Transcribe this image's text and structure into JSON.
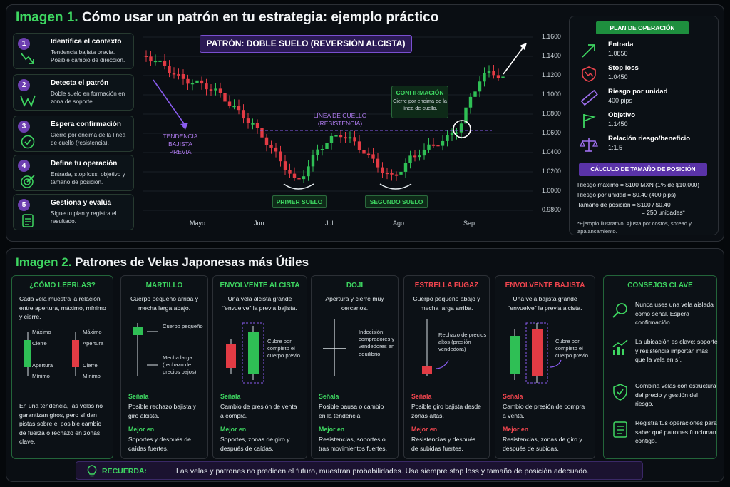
{
  "image1": {
    "num": "Imagen 1.",
    "title": "Cómo usar un patrón en tu estrategia: ejemplo práctico",
    "steps": [
      {
        "n": "1",
        "title": "Identifica el contexto",
        "desc": "Tendencia bajista previa. Posible cambio de dirección.",
        "icon": "trend-down-icon"
      },
      {
        "n": "2",
        "title": "Detecta el patrón",
        "desc": "Doble suelo en formación en zona de soporte.",
        "icon": "w-pattern-icon"
      },
      {
        "n": "3",
        "title": "Espera confirmación",
        "desc": "Cierre por encima de la línea de cuello (resistencia).",
        "icon": "check-circle-icon"
      },
      {
        "n": "4",
        "title": "Define tu operación",
        "desc": "Entrada, stop loss, objetivo y tamaño de posición.",
        "icon": "target-icon"
      },
      {
        "n": "5",
        "title": "Gestiona y evalúa",
        "desc": "Sigue tu plan y registra el resultado.",
        "icon": "clipboard-icon"
      }
    ],
    "chart": {
      "pattern_label": "PATRÓN: DOBLE SUELO (REVERSIÓN ALCISTA)",
      "trend_label": "TENDENCIA BAJISTA PREVIA",
      "neckline_label": "LÍNEA DE CUELLO (RESISTENCIA)",
      "first_bottom": "PRIMER SUELO",
      "second_bottom": "SEGUNDO SUELO",
      "confirm_title": "CONFIRMACIÓN",
      "confirm_desc": "Cierre por encima de la línea de cuello.",
      "y_ticks": [
        "1.1600",
        "1.1400",
        "1.1200",
        "1.1000",
        "1.0800",
        "1.0600",
        "1.0400",
        "1.0200",
        "1.0000",
        "0.9800"
      ],
      "x_ticks": [
        "Mayo",
        "Jun",
        "Jul",
        "Ago",
        "Sep"
      ]
    },
    "plan": {
      "title": "PLAN DE OPERACIÓN",
      "items": [
        {
          "label": "Entrada",
          "value": "1.0850",
          "icon": "arrow-up-right-icon"
        },
        {
          "label": "Stop loss",
          "value": "1.0450",
          "icon": "shield-down-icon"
        },
        {
          "label": "Riesgo por unidad",
          "value": "400 pips",
          "icon": "ruler-icon"
        },
        {
          "label": "Objetivo",
          "value": "1.1450",
          "icon": "flag-icon"
        },
        {
          "label": "Relación riesgo/beneficio",
          "value": "1:1.5",
          "icon": "scale-icon"
        }
      ],
      "calc_title": "CÁLCULO DE TAMAÑO DE POSICIÓN",
      "calc_lines": [
        "Riesgo máximo = $100 MXN (1% de $10,000)",
        "Riesgo por unidad = $0.40 (400 pips)",
        "Tamaño de posición = $100 / $0.40",
        "= 250 unidades*"
      ],
      "note": "*Ejemplo ilustrativo. Ajusta por costos, spread y apalancamiento."
    }
  },
  "image2": {
    "num": "Imagen 2.",
    "title": "Patrones de Velas Japonesas más Útiles",
    "how": {
      "title": "¿CÓMO LEERLAS?",
      "desc": "Cada vela muestra la relación entre apertura, máximo, mínimo y cierre.",
      "bull_labels": [
        "Máximo",
        "Cierre",
        "Apertura",
        "Mínimo"
      ],
      "bear_labels": [
        "Máximo",
        "Apertura",
        "Cierre",
        "Mínimo"
      ],
      "foot": "En una tendencia, las velas no garantizan giros, pero sí dan pistas sobre el posible cambio de fuerza o rechazo en zonas clave."
    },
    "patterns": [
      {
        "title": "MARTILLO",
        "desc": "Cuerpo pequeño arriba y mecha larga abajo.",
        "ann1": "Cuerpo pequeño",
        "ann2": "Mecha larga (rechazo de precios bajos)",
        "signal_h": "Señala",
        "signal": "Posible rechazo bajista y giro alcista.",
        "best_h": "Mejor en",
        "best": "Soportes y después de caídas fuertes."
      },
      {
        "title": "ENVOLVENTE ALCISTA",
        "desc": "Una vela alcista grande “envuelve” la previa bajista.",
        "ann1": "Cubre por completo el cuerpo previo",
        "signal_h": "Señala",
        "signal": "Cambio de presión de venta a compra.",
        "best_h": "Mejor en",
        "best": "Soportes, zonas de giro y después de caídas."
      },
      {
        "title": "DOJI",
        "desc": "Apertura y cierre muy cercanos.",
        "ann1": "Indecisión: compradores y vendedores en equilibrio",
        "signal_h": "Señala",
        "signal": "Posible pausa o cambio en la tendencia.",
        "best_h": "Mejor en",
        "best": "Resistencias, soportes o tras movimientos fuertes."
      },
      {
        "title": "ESTRELLA FUGAZ",
        "desc": "Cuerpo pequeño abajo y mecha larga arriba.",
        "ann1": "Rechazo de precios altos (presión vendedora)",
        "signal_h": "Señala",
        "signal": "Posible giro bajista desde zonas altas.",
        "best_h": "Mejor en",
        "best": "Resistencias y después de subidas fuertes."
      },
      {
        "title": "ENVOLVENTE BAJISTA",
        "desc": "Una vela bajista grande “envuelve” la previa alcista.",
        "ann1": "Cubre por completo el cuerpo previo",
        "signal_h": "Señala",
        "signal": "Cambio de presión de compra a venta.",
        "best_h": "Mejor en",
        "best": "Resistencias, zonas de giro y después de subidas."
      }
    ],
    "tips": {
      "title": "CONSEJOS CLAVE",
      "items": [
        {
          "text": "Nunca uses una vela aislada como señal. Espera confirmación.",
          "icon": "magnifier-icon"
        },
        {
          "text": "La ubicación es clave: soporte y resistencia importan más que la vela en sí.",
          "icon": "chart-up-icon"
        },
        {
          "text": "Combina velas con estructura del precio y gestión del riesgo.",
          "icon": "shield-check-icon"
        },
        {
          "text": "Registra tus operaciones para saber qué patrones funcionan contigo.",
          "icon": "checklist-icon"
        }
      ]
    },
    "recuerda_label": "RECUERDA:",
    "recuerda_text": "Las velas y patrones no predicen el futuro, muestran probabilidades. Usa siempre stop loss y tamaño de posición adecuado."
  },
  "colors": {
    "green": "#3ed661",
    "red": "#f0454e",
    "purple": "#7a4fd0",
    "bg": "#05080b"
  }
}
